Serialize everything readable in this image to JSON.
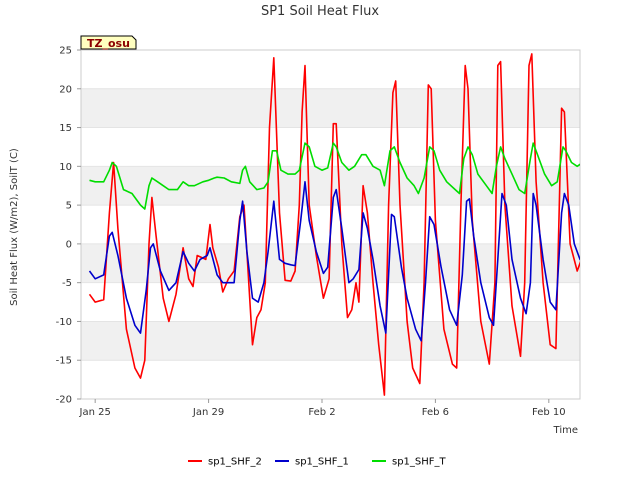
{
  "chart_data": {
    "type": "line",
    "title": "SP1 Soil Heat Flux",
    "xlabel": "Time",
    "ylabel": "Soil Heat Flux (W/m2), SoilT (C)",
    "badge": "TZ_osu",
    "xlim": [
      -0.5,
      17.1
    ],
    "ylim": [
      -20,
      25
    ],
    "x_unit": "days since Jan 25",
    "x_ticks": [
      {
        "x": 0,
        "label": "Jan 25"
      },
      {
        "x": 4,
        "label": "Jan 29"
      },
      {
        "x": 8,
        "label": "Feb 2"
      },
      {
        "x": 12,
        "label": "Feb 6"
      },
      {
        "x": 16,
        "label": "Feb 10"
      }
    ],
    "y_ticks": [
      -20,
      -15,
      -10,
      -5,
      0,
      5,
      10,
      15,
      20,
      25
    ],
    "grid": "horizontal bands",
    "legend_position": "bottom-center",
    "series": [
      {
        "name": "sp1_SHF_2",
        "color": "#ff0000",
        "points": [
          [
            -0.2,
            -6.5
          ],
          [
            0.0,
            -7.5
          ],
          [
            0.3,
            -7.2
          ],
          [
            0.5,
            4.0
          ],
          [
            0.65,
            10.5
          ],
          [
            0.8,
            2.0
          ],
          [
            1.1,
            -11.0
          ],
          [
            1.4,
            -16.0
          ],
          [
            1.6,
            -17.3
          ],
          [
            1.75,
            -15.0
          ],
          [
            1.9,
            0.0
          ],
          [
            2.0,
            6.0
          ],
          [
            2.15,
            1.0
          ],
          [
            2.4,
            -7.0
          ],
          [
            2.6,
            -10.0
          ],
          [
            2.85,
            -6.5
          ],
          [
            3.1,
            -0.5
          ],
          [
            3.3,
            -4.5
          ],
          [
            3.45,
            -5.5
          ],
          [
            3.6,
            -1.5
          ],
          [
            3.9,
            -2.0
          ],
          [
            4.05,
            2.5
          ],
          [
            4.15,
            -0.5
          ],
          [
            4.35,
            -3.0
          ],
          [
            4.5,
            -6.2
          ],
          [
            4.7,
            -4.5
          ],
          [
            4.9,
            -3.5
          ],
          [
            5.1,
            3.5
          ],
          [
            5.25,
            5.0
          ],
          [
            5.4,
            -4.0
          ],
          [
            5.55,
            -13.0
          ],
          [
            5.7,
            -9.5
          ],
          [
            5.85,
            -8.5
          ],
          [
            6.0,
            -5.0
          ],
          [
            6.15,
            15.0
          ],
          [
            6.3,
            24.0
          ],
          [
            6.5,
            4.0
          ],
          [
            6.7,
            -4.7
          ],
          [
            6.9,
            -4.8
          ],
          [
            7.05,
            -3.5
          ],
          [
            7.2,
            5.0
          ],
          [
            7.3,
            17.0
          ],
          [
            7.4,
            23.0
          ],
          [
            7.55,
            5.0
          ],
          [
            7.8,
            -1.5
          ],
          [
            8.05,
            -7.0
          ],
          [
            8.25,
            -4.5
          ],
          [
            8.4,
            15.5
          ],
          [
            8.5,
            15.5
          ],
          [
            8.7,
            0.0
          ],
          [
            8.9,
            -9.5
          ],
          [
            9.05,
            -8.5
          ],
          [
            9.2,
            -5.0
          ],
          [
            9.3,
            -7.5
          ],
          [
            9.45,
            7.5
          ],
          [
            9.6,
            4.0
          ],
          [
            9.8,
            -5.0
          ],
          [
            10.0,
            -13.0
          ],
          [
            10.2,
            -19.5
          ],
          [
            10.35,
            5.0
          ],
          [
            10.5,
            19.5
          ],
          [
            10.6,
            21.0
          ],
          [
            10.75,
            5.0
          ],
          [
            11.0,
            -10.0
          ],
          [
            11.2,
            -16.0
          ],
          [
            11.45,
            -18.0
          ],
          [
            11.6,
            -5.0
          ],
          [
            11.75,
            20.5
          ],
          [
            11.85,
            20.0
          ],
          [
            12.0,
            3.0
          ],
          [
            12.3,
            -11.0
          ],
          [
            12.6,
            -15.5
          ],
          [
            12.75,
            -16.0
          ],
          [
            12.9,
            5.0
          ],
          [
            13.05,
            23.0
          ],
          [
            13.15,
            20.0
          ],
          [
            13.3,
            3.0
          ],
          [
            13.6,
            -10.0
          ],
          [
            13.9,
            -15.5
          ],
          [
            14.1,
            -5.0
          ],
          [
            14.2,
            23.0
          ],
          [
            14.3,
            23.5
          ],
          [
            14.45,
            5.0
          ],
          [
            14.7,
            -8.0
          ],
          [
            15.0,
            -14.5
          ],
          [
            15.15,
            -5.0
          ],
          [
            15.3,
            23.0
          ],
          [
            15.4,
            24.5
          ],
          [
            15.55,
            8.0
          ],
          [
            15.8,
            -5.0
          ],
          [
            16.05,
            -13.0
          ],
          [
            16.25,
            -13.5
          ],
          [
            16.45,
            17.5
          ],
          [
            16.55,
            17.0
          ],
          [
            16.75,
            0.0
          ],
          [
            17.0,
            -3.5
          ],
          [
            17.15,
            -2.0
          ],
          [
            17.3,
            20.0
          ],
          [
            17.4,
            22.0
          ],
          [
            17.55,
            5.0
          ],
          [
            17.75,
            -2.0
          ],
          [
            17.9,
            -5.0
          ],
          [
            18.1,
            -5.0
          ],
          [
            18.25,
            20.0
          ],
          [
            18.4,
            22.5
          ],
          [
            18.55,
            10.0
          ],
          [
            18.75,
            -8.5
          ]
        ]
      },
      {
        "name": "sp1_SHF_1",
        "color": "#0000cc",
        "points": [
          [
            -0.2,
            -3.5
          ],
          [
            0.0,
            -4.5
          ],
          [
            0.3,
            -4.0
          ],
          [
            0.5,
            1.0
          ],
          [
            0.6,
            1.5
          ],
          [
            0.8,
            -1.5
          ],
          [
            1.1,
            -7.0
          ],
          [
            1.4,
            -10.5
          ],
          [
            1.6,
            -11.5
          ],
          [
            1.8,
            -6.0
          ],
          [
            1.95,
            -0.5
          ],
          [
            2.05,
            0.0
          ],
          [
            2.3,
            -3.5
          ],
          [
            2.6,
            -6.0
          ],
          [
            2.85,
            -5.0
          ],
          [
            3.1,
            -1.0
          ],
          [
            3.3,
            -2.5
          ],
          [
            3.5,
            -3.5
          ],
          [
            3.7,
            -2.0
          ],
          [
            3.95,
            -1.5
          ],
          [
            4.05,
            -0.5
          ],
          [
            4.3,
            -4.0
          ],
          [
            4.5,
            -5.0
          ],
          [
            4.7,
            -5.0
          ],
          [
            4.9,
            -5.0
          ],
          [
            5.1,
            3.0
          ],
          [
            5.2,
            5.5
          ],
          [
            5.35,
            -1.0
          ],
          [
            5.55,
            -7.0
          ],
          [
            5.75,
            -7.5
          ],
          [
            5.95,
            -5.0
          ],
          [
            6.1,
            -1.0
          ],
          [
            6.3,
            5.5
          ],
          [
            6.5,
            -2.0
          ],
          [
            6.7,
            -2.5
          ],
          [
            6.9,
            -2.7
          ],
          [
            7.05,
            -2.8
          ],
          [
            7.25,
            3.0
          ],
          [
            7.4,
            8.0
          ],
          [
            7.55,
            3.0
          ],
          [
            7.8,
            -1.0
          ],
          [
            8.05,
            -3.8
          ],
          [
            8.2,
            -3.0
          ],
          [
            8.4,
            6.0
          ],
          [
            8.5,
            7.0
          ],
          [
            8.7,
            2.0
          ],
          [
            8.95,
            -5.0
          ],
          [
            9.1,
            -4.5
          ],
          [
            9.3,
            -3.3
          ],
          [
            9.45,
            4.0
          ],
          [
            9.6,
            2.0
          ],
          [
            9.8,
            -2.0
          ],
          [
            10.05,
            -8.0
          ],
          [
            10.25,
            -11.5
          ],
          [
            10.45,
            3.8
          ],
          [
            10.55,
            3.5
          ],
          [
            10.8,
            -3.0
          ],
          [
            11.0,
            -7.0
          ],
          [
            11.3,
            -11.0
          ],
          [
            11.5,
            -12.5
          ],
          [
            11.65,
            -5.0
          ],
          [
            11.8,
            3.5
          ],
          [
            11.95,
            2.5
          ],
          [
            12.2,
            -3.0
          ],
          [
            12.5,
            -8.5
          ],
          [
            12.75,
            -10.5
          ],
          [
            12.95,
            -4.0
          ],
          [
            13.1,
            5.5
          ],
          [
            13.2,
            5.8
          ],
          [
            13.35,
            1.0
          ],
          [
            13.6,
            -5.0
          ],
          [
            13.9,
            -9.5
          ],
          [
            14.05,
            -10.5
          ],
          [
            14.2,
            -2.0
          ],
          [
            14.35,
            6.5
          ],
          [
            14.5,
            5.0
          ],
          [
            14.7,
            -2.0
          ],
          [
            15.0,
            -7.0
          ],
          [
            15.2,
            -9.0
          ],
          [
            15.35,
            -5.0
          ],
          [
            15.45,
            6.5
          ],
          [
            15.55,
            5.0
          ],
          [
            15.8,
            -2.0
          ],
          [
            16.05,
            -7.5
          ],
          [
            16.25,
            -8.5
          ],
          [
            16.45,
            4.0
          ],
          [
            16.55,
            6.5
          ],
          [
            16.7,
            5.0
          ],
          [
            16.9,
            0.0
          ],
          [
            17.1,
            -2.0
          ],
          [
            17.25,
            -2.5
          ],
          [
            17.4,
            7.5
          ],
          [
            17.5,
            7.5
          ],
          [
            17.7,
            3.0
          ],
          [
            17.9,
            -2.0
          ],
          [
            18.1,
            -3.0
          ],
          [
            18.25,
            3.5
          ],
          [
            18.35,
            8.0
          ],
          [
            18.5,
            5.0
          ],
          [
            18.75,
            -4.0
          ]
        ]
      },
      {
        "name": "sp1_SHF_T",
        "color": "#00dd00",
        "points": [
          [
            -0.2,
            8.2
          ],
          [
            0.0,
            8.0
          ],
          [
            0.3,
            8.0
          ],
          [
            0.5,
            9.5
          ],
          [
            0.6,
            10.5
          ],
          [
            0.75,
            10.0
          ],
          [
            1.0,
            7.0
          ],
          [
            1.3,
            6.5
          ],
          [
            1.6,
            5.0
          ],
          [
            1.75,
            4.5
          ],
          [
            1.9,
            7.5
          ],
          [
            2.0,
            8.5
          ],
          [
            2.2,
            8.0
          ],
          [
            2.4,
            7.5
          ],
          [
            2.6,
            7.0
          ],
          [
            2.9,
            7.0
          ],
          [
            3.1,
            8.0
          ],
          [
            3.3,
            7.5
          ],
          [
            3.5,
            7.5
          ],
          [
            3.8,
            8.0
          ],
          [
            4.0,
            8.2
          ],
          [
            4.2,
            8.5
          ],
          [
            4.3,
            8.6
          ],
          [
            4.55,
            8.5
          ],
          [
            4.8,
            8.0
          ],
          [
            5.1,
            7.8
          ],
          [
            5.2,
            9.5
          ],
          [
            5.3,
            10.0
          ],
          [
            5.45,
            8.0
          ],
          [
            5.7,
            7.0
          ],
          [
            5.95,
            7.2
          ],
          [
            6.1,
            8.0
          ],
          [
            6.25,
            12.0
          ],
          [
            6.4,
            12.0
          ],
          [
            6.55,
            9.5
          ],
          [
            6.8,
            9.0
          ],
          [
            7.05,
            9.0
          ],
          [
            7.2,
            9.5
          ],
          [
            7.4,
            13.0
          ],
          [
            7.55,
            12.5
          ],
          [
            7.75,
            10.0
          ],
          [
            8.0,
            9.5
          ],
          [
            8.2,
            9.8
          ],
          [
            8.4,
            13.0
          ],
          [
            8.5,
            12.5
          ],
          [
            8.7,
            10.5
          ],
          [
            8.95,
            9.5
          ],
          [
            9.15,
            10.0
          ],
          [
            9.4,
            11.5
          ],
          [
            9.55,
            11.5
          ],
          [
            9.8,
            10.0
          ],
          [
            10.05,
            9.5
          ],
          [
            10.2,
            7.5
          ],
          [
            10.4,
            12.0
          ],
          [
            10.55,
            12.5
          ],
          [
            10.75,
            10.5
          ],
          [
            11.0,
            8.5
          ],
          [
            11.25,
            7.5
          ],
          [
            11.4,
            6.5
          ],
          [
            11.6,
            8.5
          ],
          [
            11.8,
            12.5
          ],
          [
            11.95,
            12.0
          ],
          [
            12.15,
            9.5
          ],
          [
            12.4,
            8.0
          ],
          [
            12.7,
            7.0
          ],
          [
            12.85,
            6.5
          ],
          [
            13.0,
            11.0
          ],
          [
            13.15,
            12.5
          ],
          [
            13.3,
            11.5
          ],
          [
            13.5,
            9.0
          ],
          [
            13.8,
            7.5
          ],
          [
            14.0,
            6.5
          ],
          [
            14.15,
            10.0
          ],
          [
            14.3,
            12.5
          ],
          [
            14.45,
            11.0
          ],
          [
            14.7,
            9.0
          ],
          [
            14.95,
            7.0
          ],
          [
            15.15,
            6.5
          ],
          [
            15.35,
            11.0
          ],
          [
            15.45,
            13.0
          ],
          [
            15.6,
            11.5
          ],
          [
            15.85,
            9.0
          ],
          [
            16.1,
            7.5
          ],
          [
            16.3,
            8.0
          ],
          [
            16.5,
            12.5
          ],
          [
            16.6,
            12.0
          ],
          [
            16.8,
            10.5
          ],
          [
            17.0,
            10.0
          ],
          [
            17.2,
            10.5
          ],
          [
            17.35,
            14.5
          ],
          [
            17.45,
            14.0
          ],
          [
            17.65,
            12.0
          ],
          [
            17.85,
            10.5
          ],
          [
            18.05,
            10.5
          ],
          [
            18.25,
            15.0
          ],
          [
            18.4,
            15.5
          ],
          [
            18.55,
            13.0
          ],
          [
            18.75,
            11.0
          ]
        ]
      }
    ]
  }
}
